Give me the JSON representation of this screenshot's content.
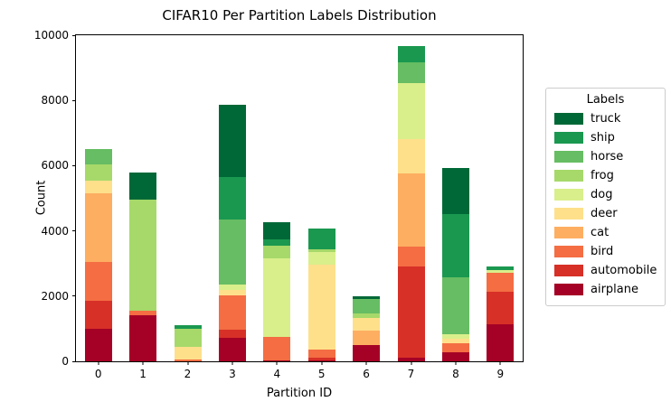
{
  "chart_data": {
    "type": "bar",
    "stacked": true,
    "title": "CIFAR10 Per Partition Labels Distribution",
    "xlabel": "Partition ID",
    "ylabel": "Count",
    "ylim": [
      0,
      10000
    ],
    "yticks": [
      0,
      2000,
      4000,
      6000,
      8000,
      10000
    ],
    "categories": [
      "0",
      "1",
      "2",
      "3",
      "4",
      "5",
      "6",
      "7",
      "8",
      "9"
    ],
    "legend_title": "Labels",
    "legend_position": "right",
    "legend_order": [
      "truck",
      "ship",
      "horse",
      "frog",
      "dog",
      "deer",
      "cat",
      "bird",
      "automobile",
      "airplane"
    ],
    "grid": false,
    "series": [
      {
        "name": "airplane",
        "color": "#a50026",
        "values": [
          1000,
          1400,
          0,
          730,
          30,
          30,
          490,
          120,
          270,
          1130
        ]
      },
      {
        "name": "automobile",
        "color": "#d73027",
        "values": [
          850,
          0,
          0,
          230,
          0,
          90,
          0,
          2800,
          0,
          1010
        ]
      },
      {
        "name": "bird",
        "color": "#f46d43",
        "values": [
          1200,
          150,
          50,
          1050,
          730,
          230,
          0,
          600,
          275,
          580
        ]
      },
      {
        "name": "cat",
        "color": "#fdae61",
        "values": [
          2100,
          0,
          0,
          0,
          0,
          0,
          460,
          2240,
          0,
          0
        ]
      },
      {
        "name": "deer",
        "color": "#fee08b",
        "values": [
          400,
          0,
          390,
          180,
          0,
          2620,
          370,
          1060,
          140,
          0
        ]
      },
      {
        "name": "dog",
        "color": "#d9ef8b",
        "values": [
          0,
          0,
          0,
          180,
          2390,
          370,
          0,
          1700,
          140,
          90
        ]
      },
      {
        "name": "frog",
        "color": "#a6d96a",
        "values": [
          500,
          3400,
          550,
          0,
          410,
          90,
          140,
          0,
          0,
          0
        ]
      },
      {
        "name": "horse",
        "color": "#66bd63",
        "values": [
          450,
          0,
          0,
          1980,
          0,
          0,
          460,
          640,
          1745,
          0
        ]
      },
      {
        "name": "ship",
        "color": "#1a9850",
        "values": [
          0,
          0,
          120,
          1300,
          180,
          645,
          0,
          500,
          1950,
          90
        ]
      },
      {
        "name": "truck",
        "color": "#006837",
        "values": [
          0,
          850,
          0,
          2230,
          520,
          0,
          75,
          0,
          1400,
          0
        ]
      }
    ],
    "totals": [
      6500,
      5800,
      1110,
      7880,
      4260,
      4075,
      1995,
      9660,
      5920,
      2900
    ]
  }
}
